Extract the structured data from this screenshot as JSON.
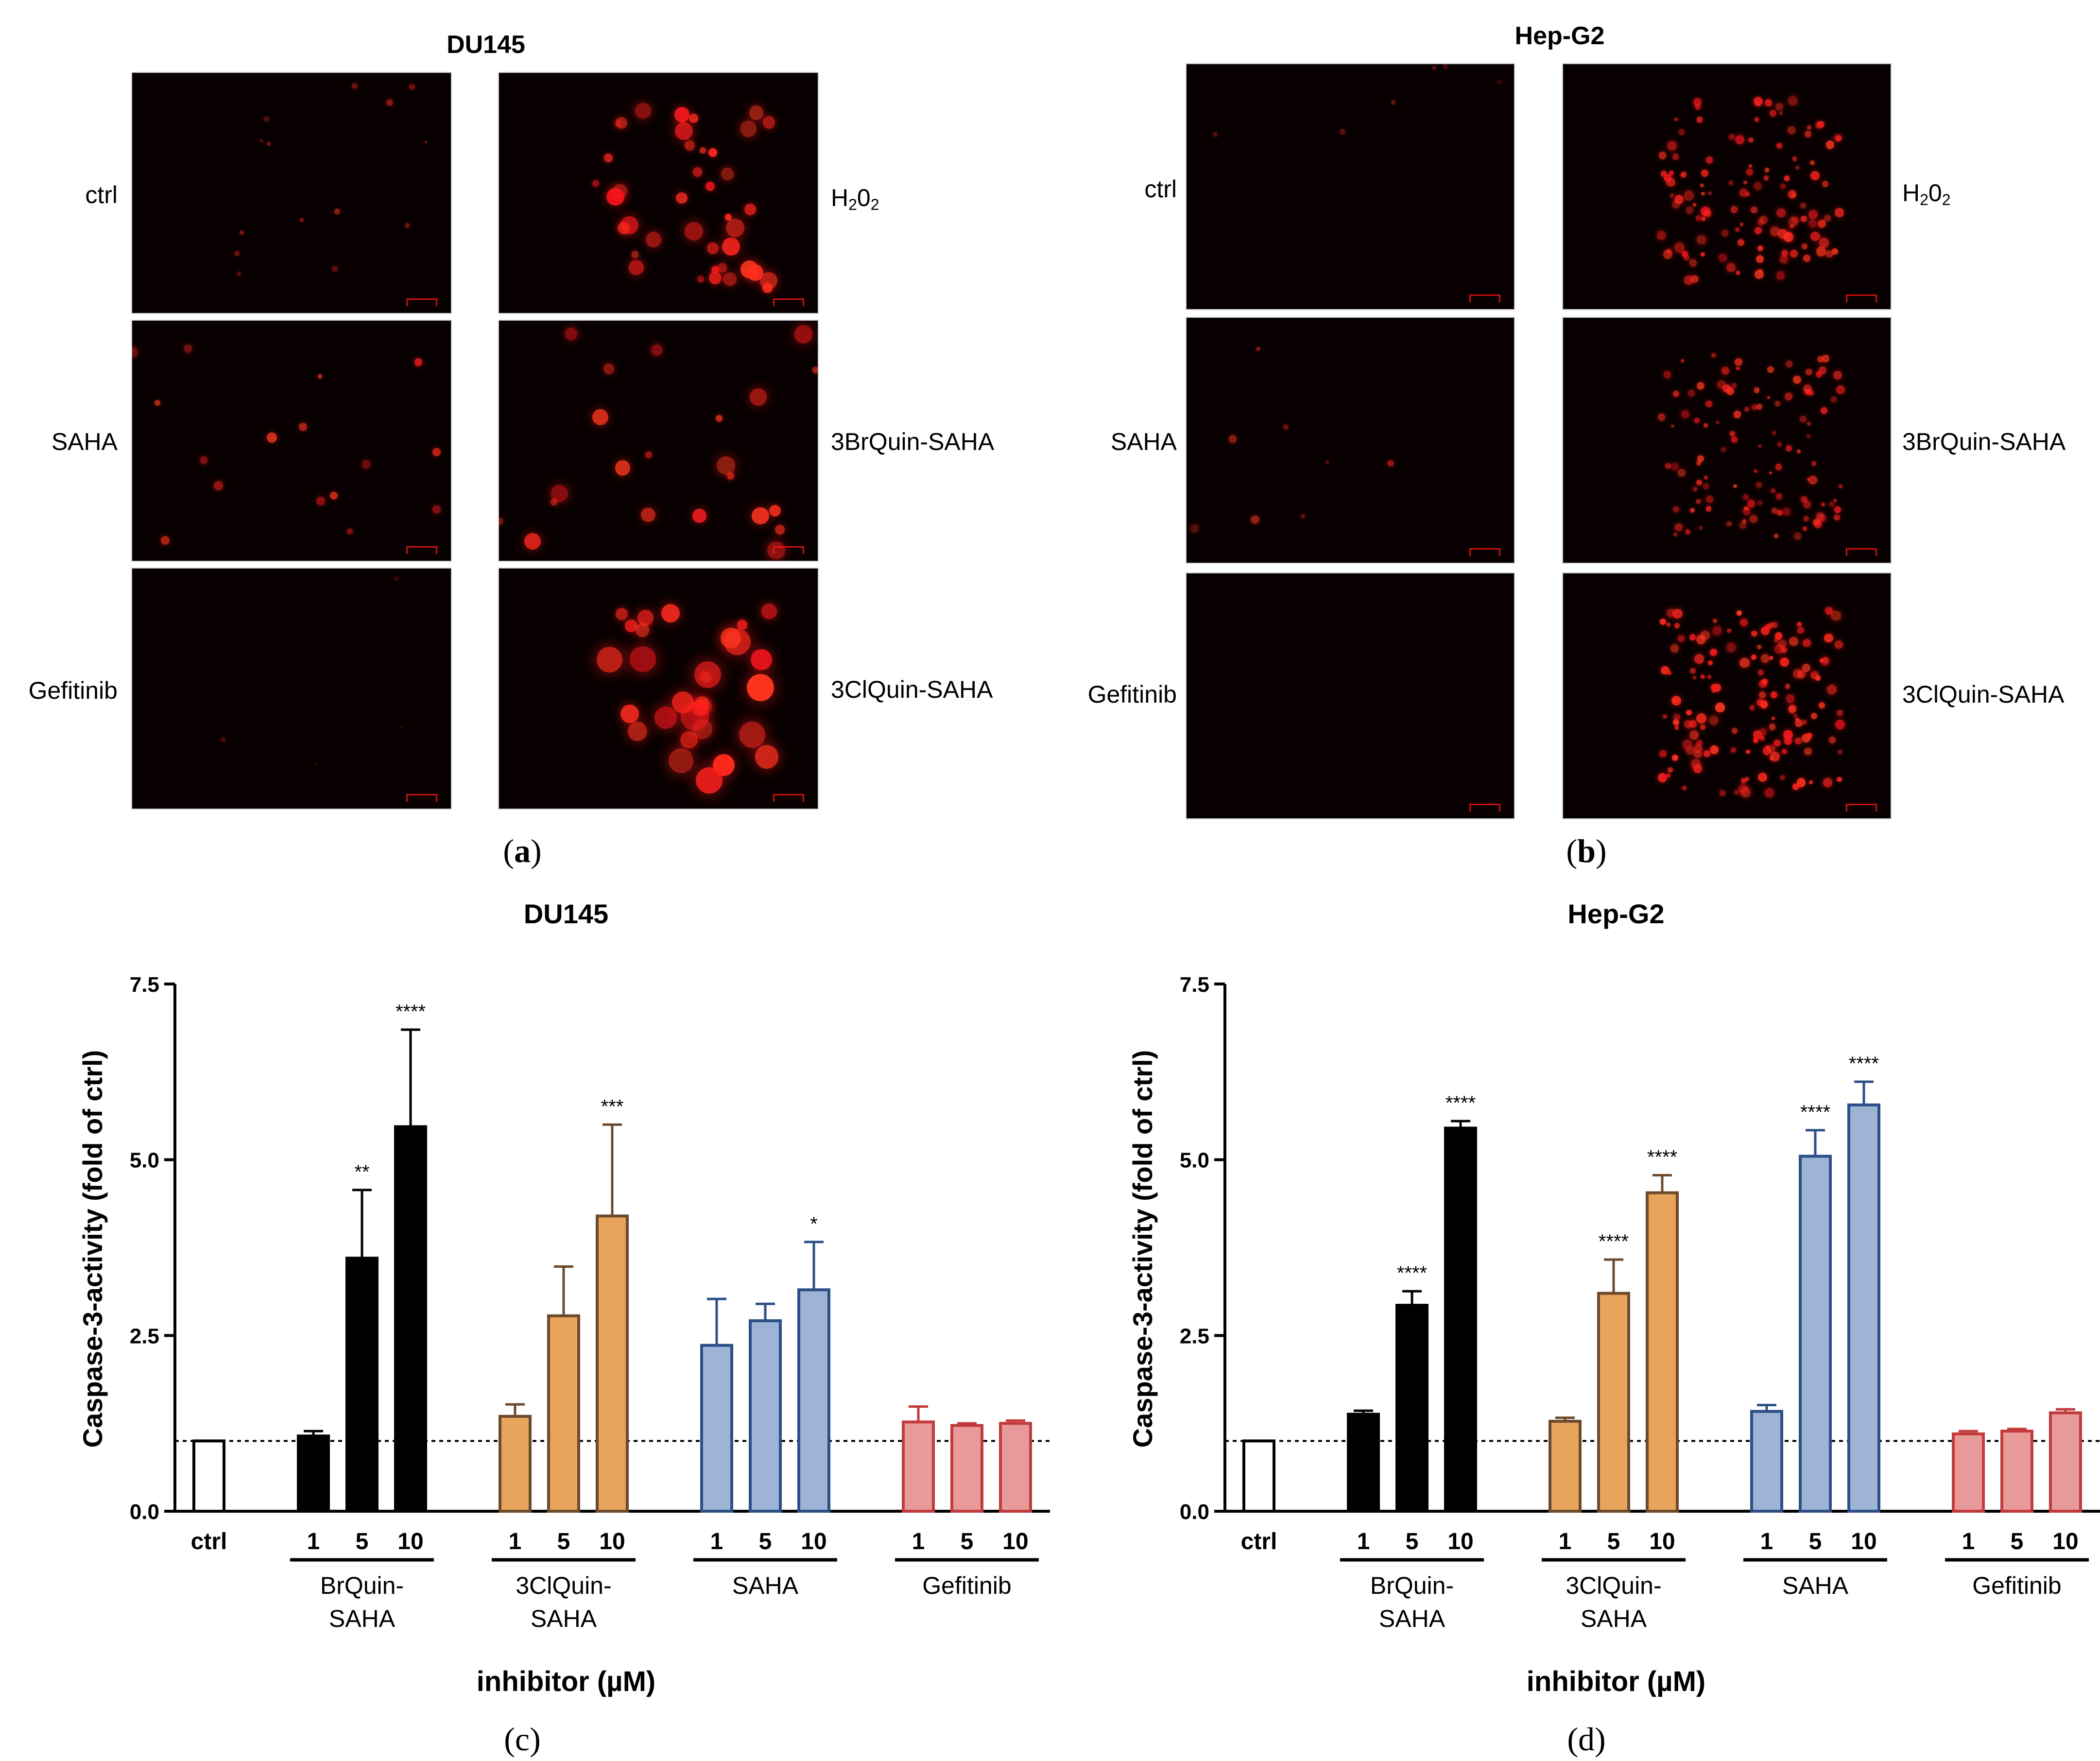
{
  "panel_a": {
    "title": "DU145",
    "letter_open": "(",
    "letter": "a",
    "letter_close": ")",
    "labels_left": [
      "ctrl",
      "SAHA",
      "Gefitinib"
    ],
    "labels_right_h2o2": {
      "pre": "H",
      "sub1": "2",
      "mid": "0",
      "sub2": "2"
    },
    "labels_right": [
      "3BrQuin-SAHA",
      "3ClQuin-SAHA"
    ]
  },
  "panel_b": {
    "title": "Hep-G2",
    "letter_open": "(",
    "letter": "b",
    "letter_close": ")",
    "labels_left": [
      "ctrl",
      "SAHA",
      "Gefitinib"
    ],
    "labels_right_h2o2": {
      "pre": "H",
      "sub1": "2",
      "mid": "0",
      "sub2": "2"
    },
    "labels_right": [
      "3BrQuin-SAHA",
      "3ClQuin-SAHA"
    ]
  },
  "panel_c": {
    "letter": "(c)"
  },
  "panel_d": {
    "letter": "(d)"
  },
  "colors": {
    "ctrl_fill": "#ffffff",
    "brquin": "#000000",
    "clquin_fill": "#e8a45a",
    "clquin_edge": "#6b4a2e",
    "saha_fill": "#9db4d6",
    "saha_edge": "#2c4f86",
    "gef_fill": "#e89a9a",
    "gef_edge": "#c23b3b"
  },
  "chart_data": [
    {
      "type": "bar",
      "title": "DU145",
      "xlabel": "inhibitor (µM)",
      "ylabel": "Caspase-3-activity (fold of ctrl)",
      "ylim": [
        0,
        7.5
      ],
      "yticks": [
        "0.0",
        "2.5",
        "5.0",
        "7.5"
      ],
      "reference_line": 1.0,
      "groups": [
        {
          "label": "",
          "bars": [
            {
              "x": "ctrl",
              "value": 1.0,
              "err": 0.0,
              "sig": ""
            }
          ]
        },
        {
          "label": "BrQuin-\nSAHA",
          "bars": [
            {
              "x": "1",
              "value": 1.07,
              "err": 0.07,
              "sig": ""
            },
            {
              "x": "5",
              "value": 3.6,
              "err": 0.97,
              "sig": "**"
            },
            {
              "x": "10",
              "value": 5.47,
              "err": 1.38,
              "sig": "****"
            }
          ]
        },
        {
          "label": "3ClQuin-\nSAHA",
          "bars": [
            {
              "x": "1",
              "value": 1.35,
              "err": 0.17,
              "sig": ""
            },
            {
              "x": "5",
              "value": 2.78,
              "err": 0.7,
              "sig": ""
            },
            {
              "x": "10",
              "value": 4.2,
              "err": 1.3,
              "sig": "***"
            }
          ]
        },
        {
          "label": "SAHA",
          "bars": [
            {
              "x": "1",
              "value": 2.36,
              "err": 0.66,
              "sig": ""
            },
            {
              "x": "5",
              "value": 2.71,
              "err": 0.24,
              "sig": ""
            },
            {
              "x": "10",
              "value": 3.15,
              "err": 0.68,
              "sig": "*"
            }
          ]
        },
        {
          "label": "Gefitinib",
          "bars": [
            {
              "x": "1",
              "value": 1.27,
              "err": 0.22,
              "sig": ""
            },
            {
              "x": "5",
              "value": 1.22,
              "err": 0.03,
              "sig": ""
            },
            {
              "x": "10",
              "value": 1.25,
              "err": 0.04,
              "sig": ""
            }
          ]
        }
      ]
    },
    {
      "type": "bar",
      "title": "Hep-G2",
      "xlabel": "inhibitor (µM)",
      "ylabel": "Caspase-3-activity (fold of ctrl)",
      "ylim": [
        0,
        7.5
      ],
      "yticks": [
        "0.0",
        "2.5",
        "5.0",
        "7.5"
      ],
      "reference_line": 1.0,
      "groups": [
        {
          "label": "",
          "bars": [
            {
              "x": "ctrl",
              "value": 1.0,
              "err": 0.0,
              "sig": ""
            }
          ]
        },
        {
          "label": "BrQuin-\nSAHA",
          "bars": [
            {
              "x": "1",
              "value": 1.38,
              "err": 0.05,
              "sig": ""
            },
            {
              "x": "5",
              "value": 2.93,
              "err": 0.2,
              "sig": "****"
            },
            {
              "x": "10",
              "value": 5.45,
              "err": 0.1,
              "sig": "****"
            }
          ]
        },
        {
          "label": "3ClQuin-\nSAHA",
          "bars": [
            {
              "x": "1",
              "value": 1.28,
              "err": 0.05,
              "sig": ""
            },
            {
              "x": "5",
              "value": 3.1,
              "err": 0.48,
              "sig": "****"
            },
            {
              "x": "10",
              "value": 4.53,
              "err": 0.25,
              "sig": "****"
            }
          ]
        },
        {
          "label": "SAHA",
          "bars": [
            {
              "x": "1",
              "value": 1.42,
              "err": 0.09,
              "sig": ""
            },
            {
              "x": "5",
              "value": 5.05,
              "err": 0.37,
              "sig": "****"
            },
            {
              "x": "10",
              "value": 5.78,
              "err": 0.33,
              "sig": "****"
            }
          ]
        },
        {
          "label": "Gefitinib",
          "bars": [
            {
              "x": "1",
              "value": 1.1,
              "err": 0.04,
              "sig": ""
            },
            {
              "x": "5",
              "value": 1.14,
              "err": 0.03,
              "sig": ""
            },
            {
              "x": "10",
              "value": 1.4,
              "err": 0.05,
              "sig": ""
            }
          ]
        }
      ]
    }
  ]
}
